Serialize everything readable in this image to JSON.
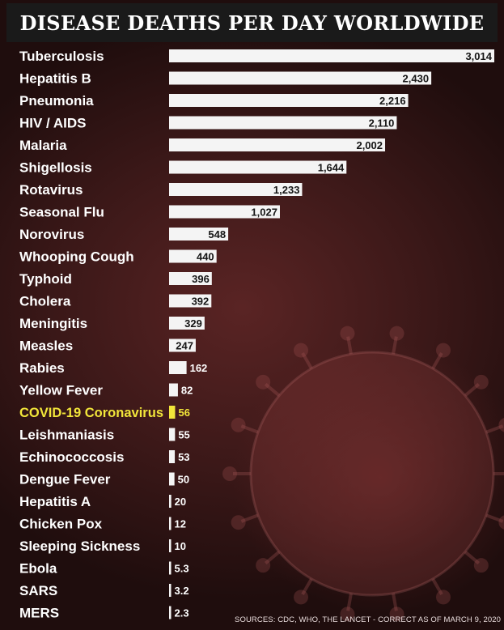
{
  "title": "DISEASE DEATHS PER DAY WORLDWIDE",
  "source": "SOURCES: CDC, WHO, THE LANCET - CORRECT AS OF MARCH 9, 2020",
  "colors": {
    "bar": "#f4f4f4",
    "label": "#ffffff",
    "highlight": "#f2e63a",
    "value_text": "#151515",
    "value_text_outside": "#ffffff"
  },
  "chart_data": {
    "type": "bar",
    "orientation": "horizontal",
    "title": "DISEASE DEATHS PER DAY WORLDWIDE",
    "highlighted_category": "COVID-19 Coronavirus",
    "categories": [
      "Tuberculosis",
      "Hepatitis B",
      "Pneumonia",
      "HIV / AIDS",
      "Malaria",
      "Shigellosis",
      "Rotavirus",
      "Seasonal Flu",
      "Norovirus",
      "Whooping Cough",
      "Typhoid",
      "Cholera",
      "Meningitis",
      "Measles",
      "Rabies",
      "Yellow Fever",
      "COVID-19 Coronavirus",
      "Leishmaniasis",
      "Echinococcosis",
      "Dengue Fever",
      "Hepatitis A",
      "Chicken Pox",
      "Sleeping Sickness",
      "Ebola",
      "SARS",
      "MERS"
    ],
    "values": [
      3014,
      2430,
      2216,
      2110,
      2002,
      1644,
      1233,
      1027,
      548,
      440,
      396,
      392,
      329,
      247,
      162,
      82,
      56,
      55,
      53,
      50,
      20,
      12,
      10,
      5.3,
      3.2,
      2.3
    ],
    "value_labels": [
      "3,014",
      "2,430",
      "2,216",
      "2,110",
      "2,002",
      "1,644",
      "1,233",
      "1,027",
      "548",
      "440",
      "396",
      "392",
      "329",
      "247",
      "162",
      "82",
      "56",
      "55",
      "53",
      "50",
      "20",
      "12",
      "10",
      "5.3",
      "3.2",
      "2.3"
    ],
    "xlim": [
      0,
      3014
    ]
  }
}
